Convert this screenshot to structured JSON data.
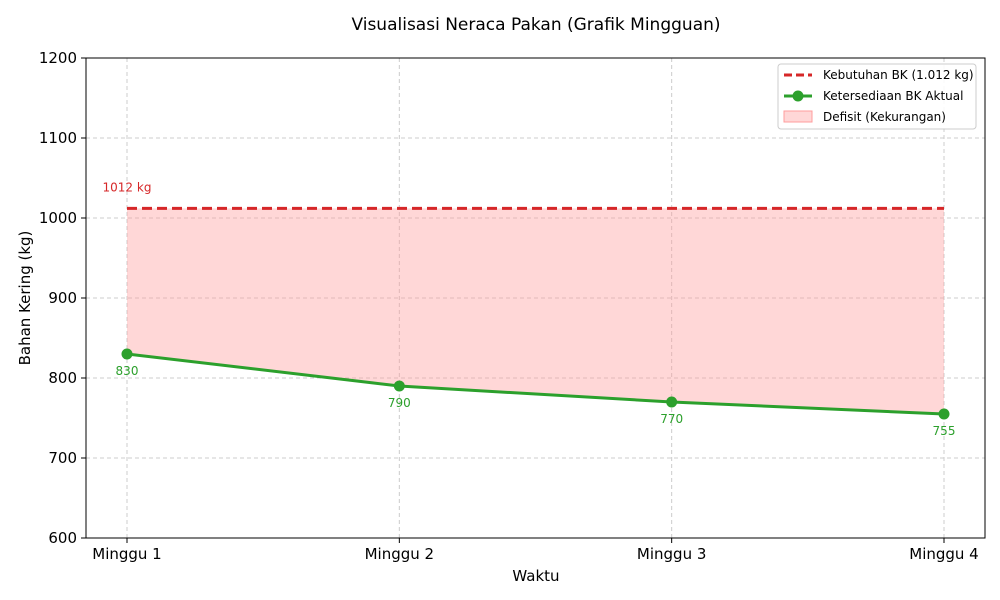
{
  "chart_data": {
    "type": "line",
    "title": "Visualisasi Neraca Pakan (Grafik Mingguan)",
    "xlabel": "Waktu",
    "ylabel": "Bahan Kering (kg)",
    "categories": [
      "Minggu 1",
      "Minggu 2",
      "Minggu 3",
      "Minggu 4"
    ],
    "ylim": [
      600,
      1200
    ],
    "yticks": [
      600,
      700,
      800,
      900,
      1000,
      1100,
      1200
    ],
    "grid": true,
    "legend_position": "top-right",
    "requirement": {
      "name": "Kebutuhan BK (1.012 kg)",
      "value": 1012,
      "annotation": "1012 kg",
      "color": "#d62728"
    },
    "series": [
      {
        "name": "Ketersediaan BK Aktual",
        "values": [
          830,
          790,
          770,
          755
        ],
        "labels": [
          "830",
          "790",
          "770",
          "755"
        ],
        "color": "#2ca02c"
      }
    ],
    "deficit_area": {
      "name": "Defisit (Kekurangan)",
      "color": "#ff9c9c"
    }
  }
}
